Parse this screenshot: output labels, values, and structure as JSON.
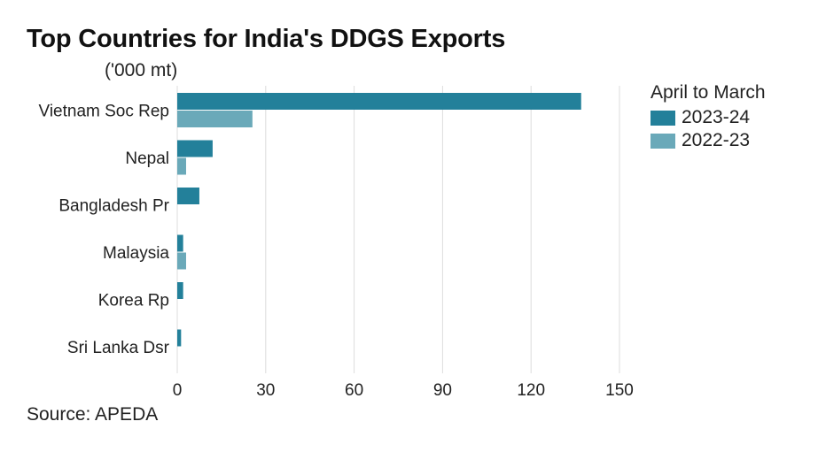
{
  "chart_data": {
    "type": "bar",
    "orientation": "horizontal",
    "title": "Top Countries for India's DDGS Exports",
    "subtitle": "('000 mt)",
    "source": "Source: APEDA",
    "categories": [
      "Vietnam Soc Rep",
      "Nepal",
      "Bangladesh Pr",
      "Malaysia",
      "Korea Rp",
      "Sri Lanka Dsr"
    ],
    "series": [
      {
        "name": "2023-24",
        "color": "#23809a",
        "values": [
          137,
          12,
          7.5,
          2,
          2,
          1.3
        ]
      },
      {
        "name": "2022-23",
        "color": "#6aa9b9",
        "values": [
          25.5,
          3,
          0,
          3,
          0,
          0
        ]
      }
    ],
    "legend_title": "April to March",
    "legend_position": "right",
    "xlim": [
      0,
      150
    ],
    "xticks": [
      "0",
      "30",
      "60",
      "90",
      "120",
      "150"
    ],
    "grid": true
  }
}
